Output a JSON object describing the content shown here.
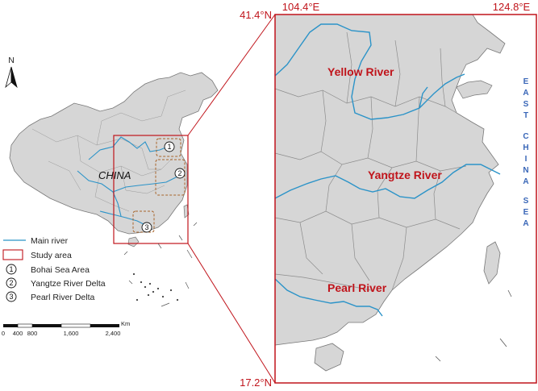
{
  "coordinates": {
    "top_left": "104.4°E",
    "top_right": "124.8°E",
    "lat_top": "41.4°N",
    "lat_bottom": "17.2°N"
  },
  "map_labels": {
    "country": "CHINA",
    "yellow_river": "Yellow River",
    "yangtze_river": "Yangtze River",
    "pearl_river": "Pearl River",
    "sea_letters": [
      "E",
      "A",
      "S",
      "T",
      "",
      "C",
      "H",
      "I",
      "N",
      "A",
      "",
      "S",
      "E",
      "A"
    ]
  },
  "north_arrow": {
    "label": "N"
  },
  "legend": {
    "main_river": "Main river",
    "study_area": "Study area",
    "items": [
      {
        "num": "1",
        "label": "Bohai Sea Area"
      },
      {
        "num": "2",
        "label": "Yangtze River Delta"
      },
      {
        "num": "3",
        "label": "Pearl River Delta"
      }
    ]
  },
  "scale_bar": {
    "unit": "Km",
    "ticks": [
      "0",
      "400",
      "800",
      "1,600",
      "2,400"
    ]
  },
  "colors": {
    "land": "#d6d6d6",
    "river": "#2b93c8",
    "frame": "#c0141b",
    "boundary": "#8c8c8c",
    "sea_label": "#3a67b8"
  }
}
